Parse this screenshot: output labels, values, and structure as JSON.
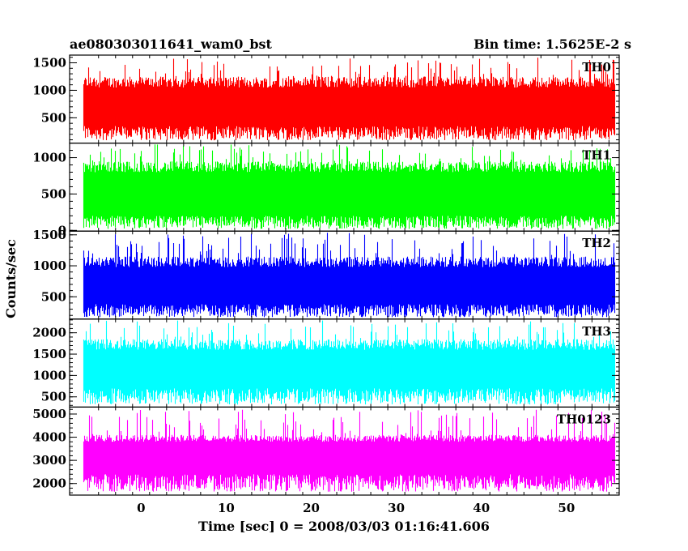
{
  "header": {
    "title": "ae080303011641_wam0_bst",
    "bin_time": "Bin time: 1.5625E-2 s"
  },
  "chart_data": {
    "type": "line",
    "title": "ae080303011641_wam0_bst",
    "subtitle": "Bin time: 1.5625E-2 s",
    "xlabel": "Time [sec] 0 = 2008/03/03 01:16:41.606",
    "ylabel": "Counts/sec",
    "xlim": [
      -8.4,
      56.2
    ],
    "x_ticks": [
      0,
      10,
      20,
      30,
      40,
      50
    ],
    "x_range_data": [
      -6.8,
      55.6
    ],
    "grid": false,
    "panels": [
      {
        "name": "TH0",
        "color": "#ff0000",
        "ylim": [
          40,
          1640
        ],
        "yticks": [
          500,
          1000,
          1500
        ],
        "low": 180,
        "high": 1250,
        "peak": 1600,
        "dip": 90,
        "base_low": 350,
        "base_high": 1050
      },
      {
        "name": "TH1",
        "color": "#00ff00",
        "ylim": [
          -10,
          1200
        ],
        "yticks": [
          0,
          500,
          1000
        ],
        "low": 60,
        "high": 950,
        "peak": 1190,
        "dip": 20,
        "base_low": 200,
        "base_high": 800
      },
      {
        "name": "TH2",
        "color": "#0000ff",
        "ylim": [
          140,
          1560
        ],
        "yticks": [
          500,
          1000,
          1500
        ],
        "low": 230,
        "high": 1150,
        "peak": 1540,
        "dip": 170,
        "base_low": 380,
        "base_high": 980
      },
      {
        "name": "TH3",
        "color": "#00ffff",
        "ylim": [
          260,
          2320
        ],
        "yticks": [
          500,
          1000,
          1500,
          2000
        ],
        "low": 500,
        "high": 1850,
        "peak": 2300,
        "dip": 320,
        "base_low": 700,
        "base_high": 1600
      },
      {
        "name": "TH0123",
        "color": "#ff00ff",
        "ylim": [
          1500,
          5300
        ],
        "yticks": [
          2000,
          3000,
          4000,
          5000
        ],
        "low": 1950,
        "high": 4100,
        "peak": 5200,
        "dip": 1650,
        "base_low": 2400,
        "base_high": 3800
      }
    ]
  }
}
